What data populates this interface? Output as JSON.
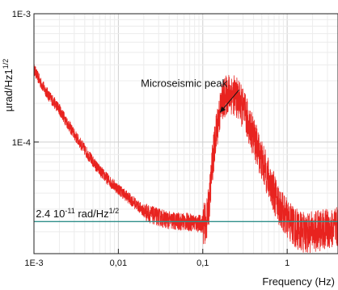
{
  "chart_data": {
    "type": "line",
    "xscale": "log",
    "yscale": "log",
    "xlim": [
      0.001,
      4
    ],
    "ylim": [
      1.35e-05,
      0.001
    ],
    "xlabel": "Frequency (Hz)",
    "ylabel": "µrad/Hz1",
    "ylabel_sup": "1/2",
    "grid": true,
    "x_ticks": [
      {
        "value": 0.001,
        "label": "1E-3"
      },
      {
        "value": 0.01,
        "label": "0,01"
      },
      {
        "value": 0.1,
        "label": "0,1"
      },
      {
        "value": 1,
        "label": "1"
      }
    ],
    "y_ticks": [
      {
        "value": 0.001,
        "label": "1E-3"
      },
      {
        "value": 0.0001,
        "label": "1E-4"
      }
    ],
    "series": [
      {
        "color": "#e8231f",
        "noise": "high",
        "points": [
          [
            0.001,
            0.00037
          ],
          [
            0.0012,
            0.00029
          ],
          [
            0.0015,
            0.00023
          ],
          [
            0.002,
            0.00018
          ],
          [
            0.0025,
            0.00014
          ],
          [
            0.003,
            0.000115
          ],
          [
            0.004,
            8.7e-05
          ],
          [
            0.005,
            7e-05
          ],
          [
            0.006,
            6e-05
          ],
          [
            0.008,
            4.9e-05
          ],
          [
            0.01,
            4.3e-05
          ],
          [
            0.013,
            3.7e-05
          ],
          [
            0.016,
            3.3e-05
          ],
          [
            0.02,
            2.9e-05
          ],
          [
            0.025,
            2.7e-05
          ],
          [
            0.03,
            2.6e-05
          ],
          [
            0.04,
            2.45e-05
          ],
          [
            0.05,
            2.4e-05
          ],
          [
            0.06,
            2.4e-05
          ],
          [
            0.08,
            2.35e-05
          ],
          [
            0.1,
            2.3e-05
          ],
          [
            0.11,
            2.35e-05
          ],
          [
            0.12,
            3.5e-05
          ],
          [
            0.13,
            7e-05
          ],
          [
            0.15,
            0.00014
          ],
          [
            0.17,
            0.00021
          ],
          [
            0.2,
            0.00024
          ],
          [
            0.23,
            0.000235
          ],
          [
            0.27,
            0.00021
          ],
          [
            0.32,
            0.000165
          ],
          [
            0.4,
            0.00011
          ],
          [
            0.5,
            7.2e-05
          ],
          [
            0.6,
            5.2e-05
          ],
          [
            0.7,
            4e-05
          ],
          [
            0.8,
            3.2e-05
          ],
          [
            1,
            2.5e-05
          ],
          [
            1.3,
            2.1e-05
          ],
          [
            1.6,
            1.95e-05
          ],
          [
            2,
            2e-05
          ],
          [
            3,
            2.1e-05
          ],
          [
            4,
            2.15e-05
          ]
        ]
      },
      {
        "color": "#2f8f8a",
        "points": [
          [
            0.001,
            2.4e-05
          ],
          [
            4,
            2.4e-05
          ]
        ]
      }
    ],
    "annotations": [
      {
        "text": "Microseismic peak",
        "x": 0.06,
        "y": 0.00027,
        "arrow_to": [
          0.16,
          0.00017
        ]
      },
      {
        "text_main": "2.4 10",
        "sup1": "-11",
        "text_mid": " rad/Hz",
        "sup2": "1/2",
        "x": 0.00105,
        "y": 2.6e-05
      }
    ]
  }
}
